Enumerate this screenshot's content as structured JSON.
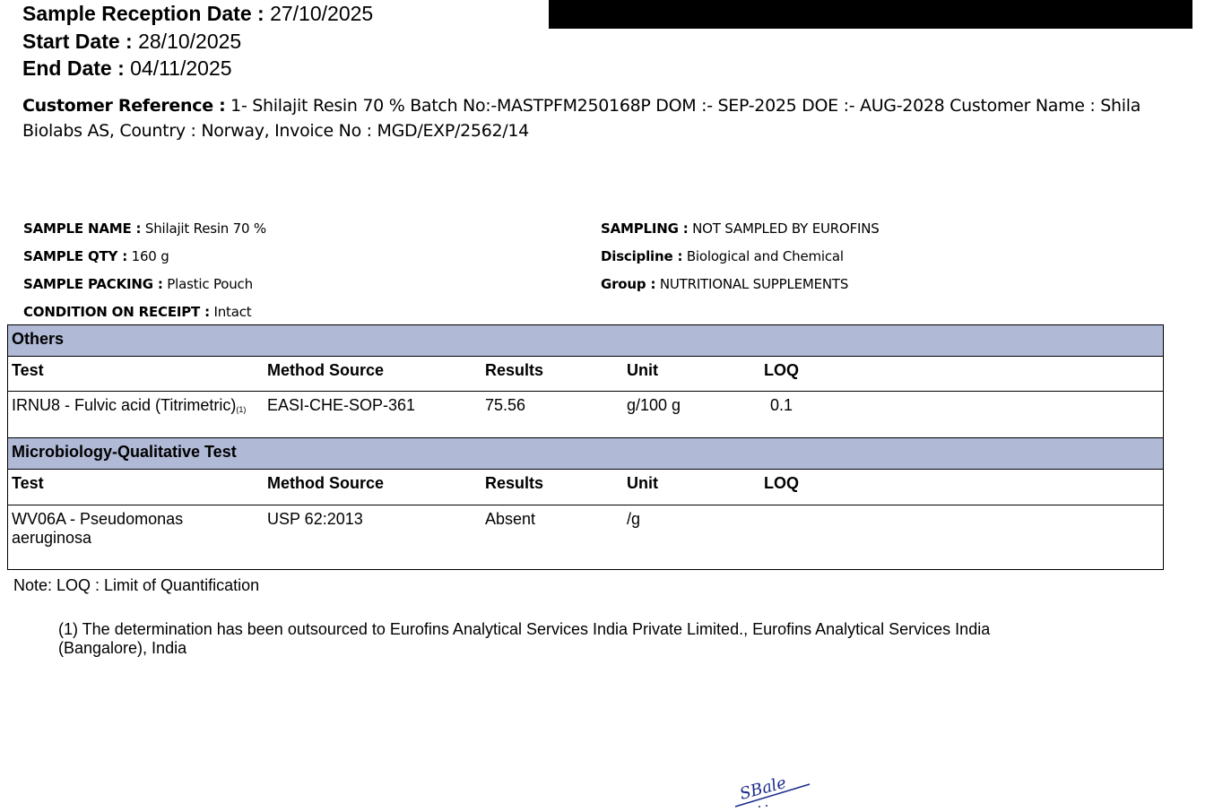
{
  "header": {
    "sample_reception_label": "Sample Reception Date :",
    "sample_reception_value": "27/10/2025",
    "start_label": "Start Date :",
    "start_value": "28/10/2025",
    "end_label": "End Date :",
    "end_value": "04/11/2025"
  },
  "customer_reference": {
    "label": "Customer Reference :",
    "value": "1- Shilajit Resin 70 % Batch No:-MASTPFM250168P DOM :- SEP-2025 DOE :- AUG-2028 Customer Name : Shila Biolabs AS, Country : Norway, Invoice No : MGD/EXP/2562/14"
  },
  "sample_info": {
    "left": [
      {
        "label": "SAMPLE NAME :",
        "value": "Shilajit Resin 70 %"
      },
      {
        "label": "SAMPLE QTY :",
        "value": "160 g"
      },
      {
        "label": "SAMPLE PACKING :",
        "value": "Plastic Pouch"
      },
      {
        "label": "CONDITION ON RECEIPT :",
        "value": "Intact"
      }
    ],
    "right": [
      {
        "label": "SAMPLING :",
        "value": "NOT SAMPLED BY EUROFINS"
      },
      {
        "label": "Discipline :",
        "value": "Biological and Chemical"
      },
      {
        "label": "Group :",
        "value": "NUTRITIONAL SUPPLEMENTS"
      }
    ]
  },
  "columns": [
    "Test",
    "Method Source",
    "Results",
    "Unit",
    "LOQ"
  ],
  "sections": [
    {
      "title": "Others",
      "rows": [
        {
          "test": "IRNU8 - Fulvic acid (Titrimetric)",
          "footnote_ref": "(1)",
          "method": "EASI-CHE-SOP-361",
          "result": "75.56",
          "unit": "g/100 g",
          "loq": "0.1"
        }
      ]
    },
    {
      "title": "Microbiology-Qualitative Test",
      "rows": [
        {
          "test_line1": "WV06A - Pseudomonas",
          "test_line2": "aeruginosa",
          "method": "USP 62:2013",
          "result": "Absent",
          "unit": "/g",
          "loq": ""
        }
      ]
    }
  ],
  "note": "Note: LOQ : Limit of Quantification",
  "footnote_line1": "(1) The determination has been outsourced to Eurofins Analytical Services India Private Limited., Eurofins Analytical Services India",
  "footnote_line2": "(Bangalore), India",
  "signature": "SBale"
}
